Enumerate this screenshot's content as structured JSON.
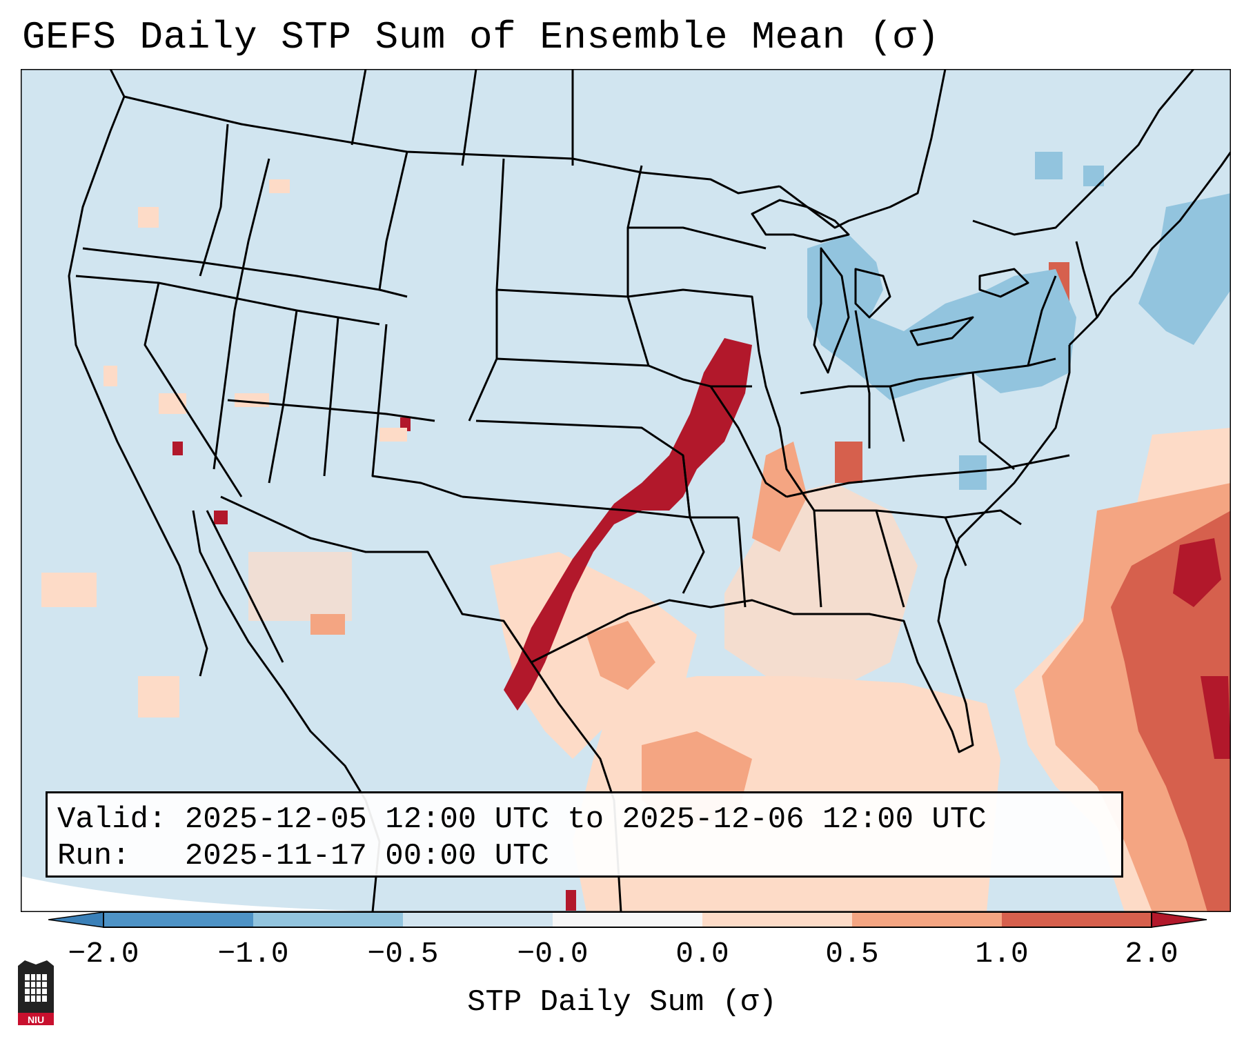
{
  "title": "GEFS Daily STP Sum of Ensemble Mean (σ)",
  "info": {
    "valid_label": "Valid:",
    "valid_value": "2025-12-05 12:00 UTC to 2025-12-06 12:00 UTC",
    "run_label": "Run:",
    "run_value": "2025-11-17 00:00 UTC"
  },
  "colorbar": {
    "label": "STP Daily Sum (σ)",
    "ticks": [
      "−2.0",
      "−1.0",
      "−0.5",
      "−0.0",
      "0.0",
      "0.5",
      "1.0",
      "2.0"
    ],
    "bins": [
      {
        "range": "<-2.0",
        "color": "#3a80b8"
      },
      {
        "range": "-2.0 to -1.0",
        "color": "#4e93c6"
      },
      {
        "range": "-1.0 to -0.5",
        "color": "#92c4de"
      },
      {
        "range": "-0.5 to -0.0",
        "color": "#d2e5f0"
      },
      {
        "range": "-0.0 to 0.0",
        "color": "#f7f7f7"
      },
      {
        "range": "0.0 to 0.5",
        "color": "#fddbc7"
      },
      {
        "range": "0.5 to 1.0",
        "color": "#f4a582"
      },
      {
        "range": "1.0 to 2.0",
        "color": "#d6604d"
      },
      {
        "range": ">2.0",
        "color": "#b2182b"
      }
    ]
  },
  "map": {
    "background_color": "#d1e5f0",
    "region": "Contiguous United States and adjacent waters"
  },
  "logo": {
    "text": "NIU",
    "icon": "niu-logo-icon"
  }
}
